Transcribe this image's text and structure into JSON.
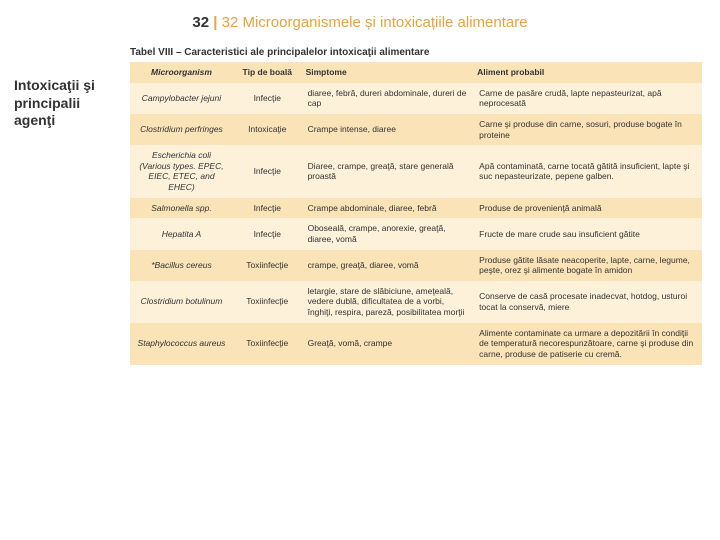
{
  "header": {
    "page_number": "32",
    "pipe": " | ",
    "chapter_title": "32 Microorganismele și intoxicațiile alimentare"
  },
  "sidebar": {
    "heading": "Intoxicaţii şi principalii agenţi"
  },
  "table": {
    "caption": "Tabel VIII – Caracteristici ale principalelor intoxicaţii alimentare",
    "columns": {
      "c1": "Microorganism",
      "c2": "Tip de boală",
      "c3": "Simptome",
      "c4": "Aliment probabil"
    },
    "rows": [
      {
        "micro": "Campylobacter jejuni",
        "tip": "Infecţie",
        "simp": "diaree, febră, dureri abdominale, dureri de cap",
        "alim": "Carne de pasăre crudă, lapte nepasteurizat, apă neprocesată"
      },
      {
        "micro": "Clostridium perfringes",
        "tip": "Intoxicaţie",
        "simp": "Crampe intense, diaree",
        "alim": "Carne şi produse din carne, sosuri, produse bogate în proteine"
      },
      {
        "micro": "Escherichia coli (Various types. EPEC, EIEC, ETEC, and EHEC)",
        "tip": "Infecţie",
        "simp": "Diaree, crampe, greaţă, stare generală proastă",
        "alim": "Apă contaminată, carne tocată gătită insuficient, lapte şi suc nepasteurizate, pepene galben."
      },
      {
        "micro": "Salmonella spp.",
        "tip": "Infecţie",
        "simp": "Crampe abdominale, diaree, febră",
        "alim": "Produse de provenienţă animală"
      },
      {
        "micro": "Hepatita A",
        "tip": "Infecţie",
        "simp": "Oboseală, crampe, anorexie, greaţă, diaree, vomă",
        "alim": "Fructe de mare crude sau insuficient gătite"
      },
      {
        "micro": "*Bacillus cereus",
        "tip": "Toxiinfecţie",
        "simp": "crampe, greaţă, diaree, vomă",
        "alim": "Produse gătite lăsate neacoperite, lapte, carne, legume, peşte, orez şi alimente bogate în amidon"
      },
      {
        "micro": "Clostridium botulinum",
        "tip": "Toxiinfecţie",
        "simp": "letargie, stare de slăbiciune, ameţeală, vedere dublă, dificultatea de a vorbi, înghiţi, respira, pareză, posibilitatea morţii",
        "alim": "Conserve de casă procesate inadecvat, hotdog, usturoi tocat la conservă, miere"
      },
      {
        "micro": "Staphylococcus aureus",
        "tip": "Toxiinfecţie",
        "simp": "Greaţă, vomă, crampe",
        "alim": "Alimente contaminate ca urmare a depozitării în condiţii de temperatură necorespunzătoare, carne şi produse din carne, produse de patiserie cu cremă."
      }
    ]
  },
  "colors": {
    "accent": "#e7a33d",
    "row_odd": "#fdf1da",
    "row_even": "#fbe3b8"
  }
}
